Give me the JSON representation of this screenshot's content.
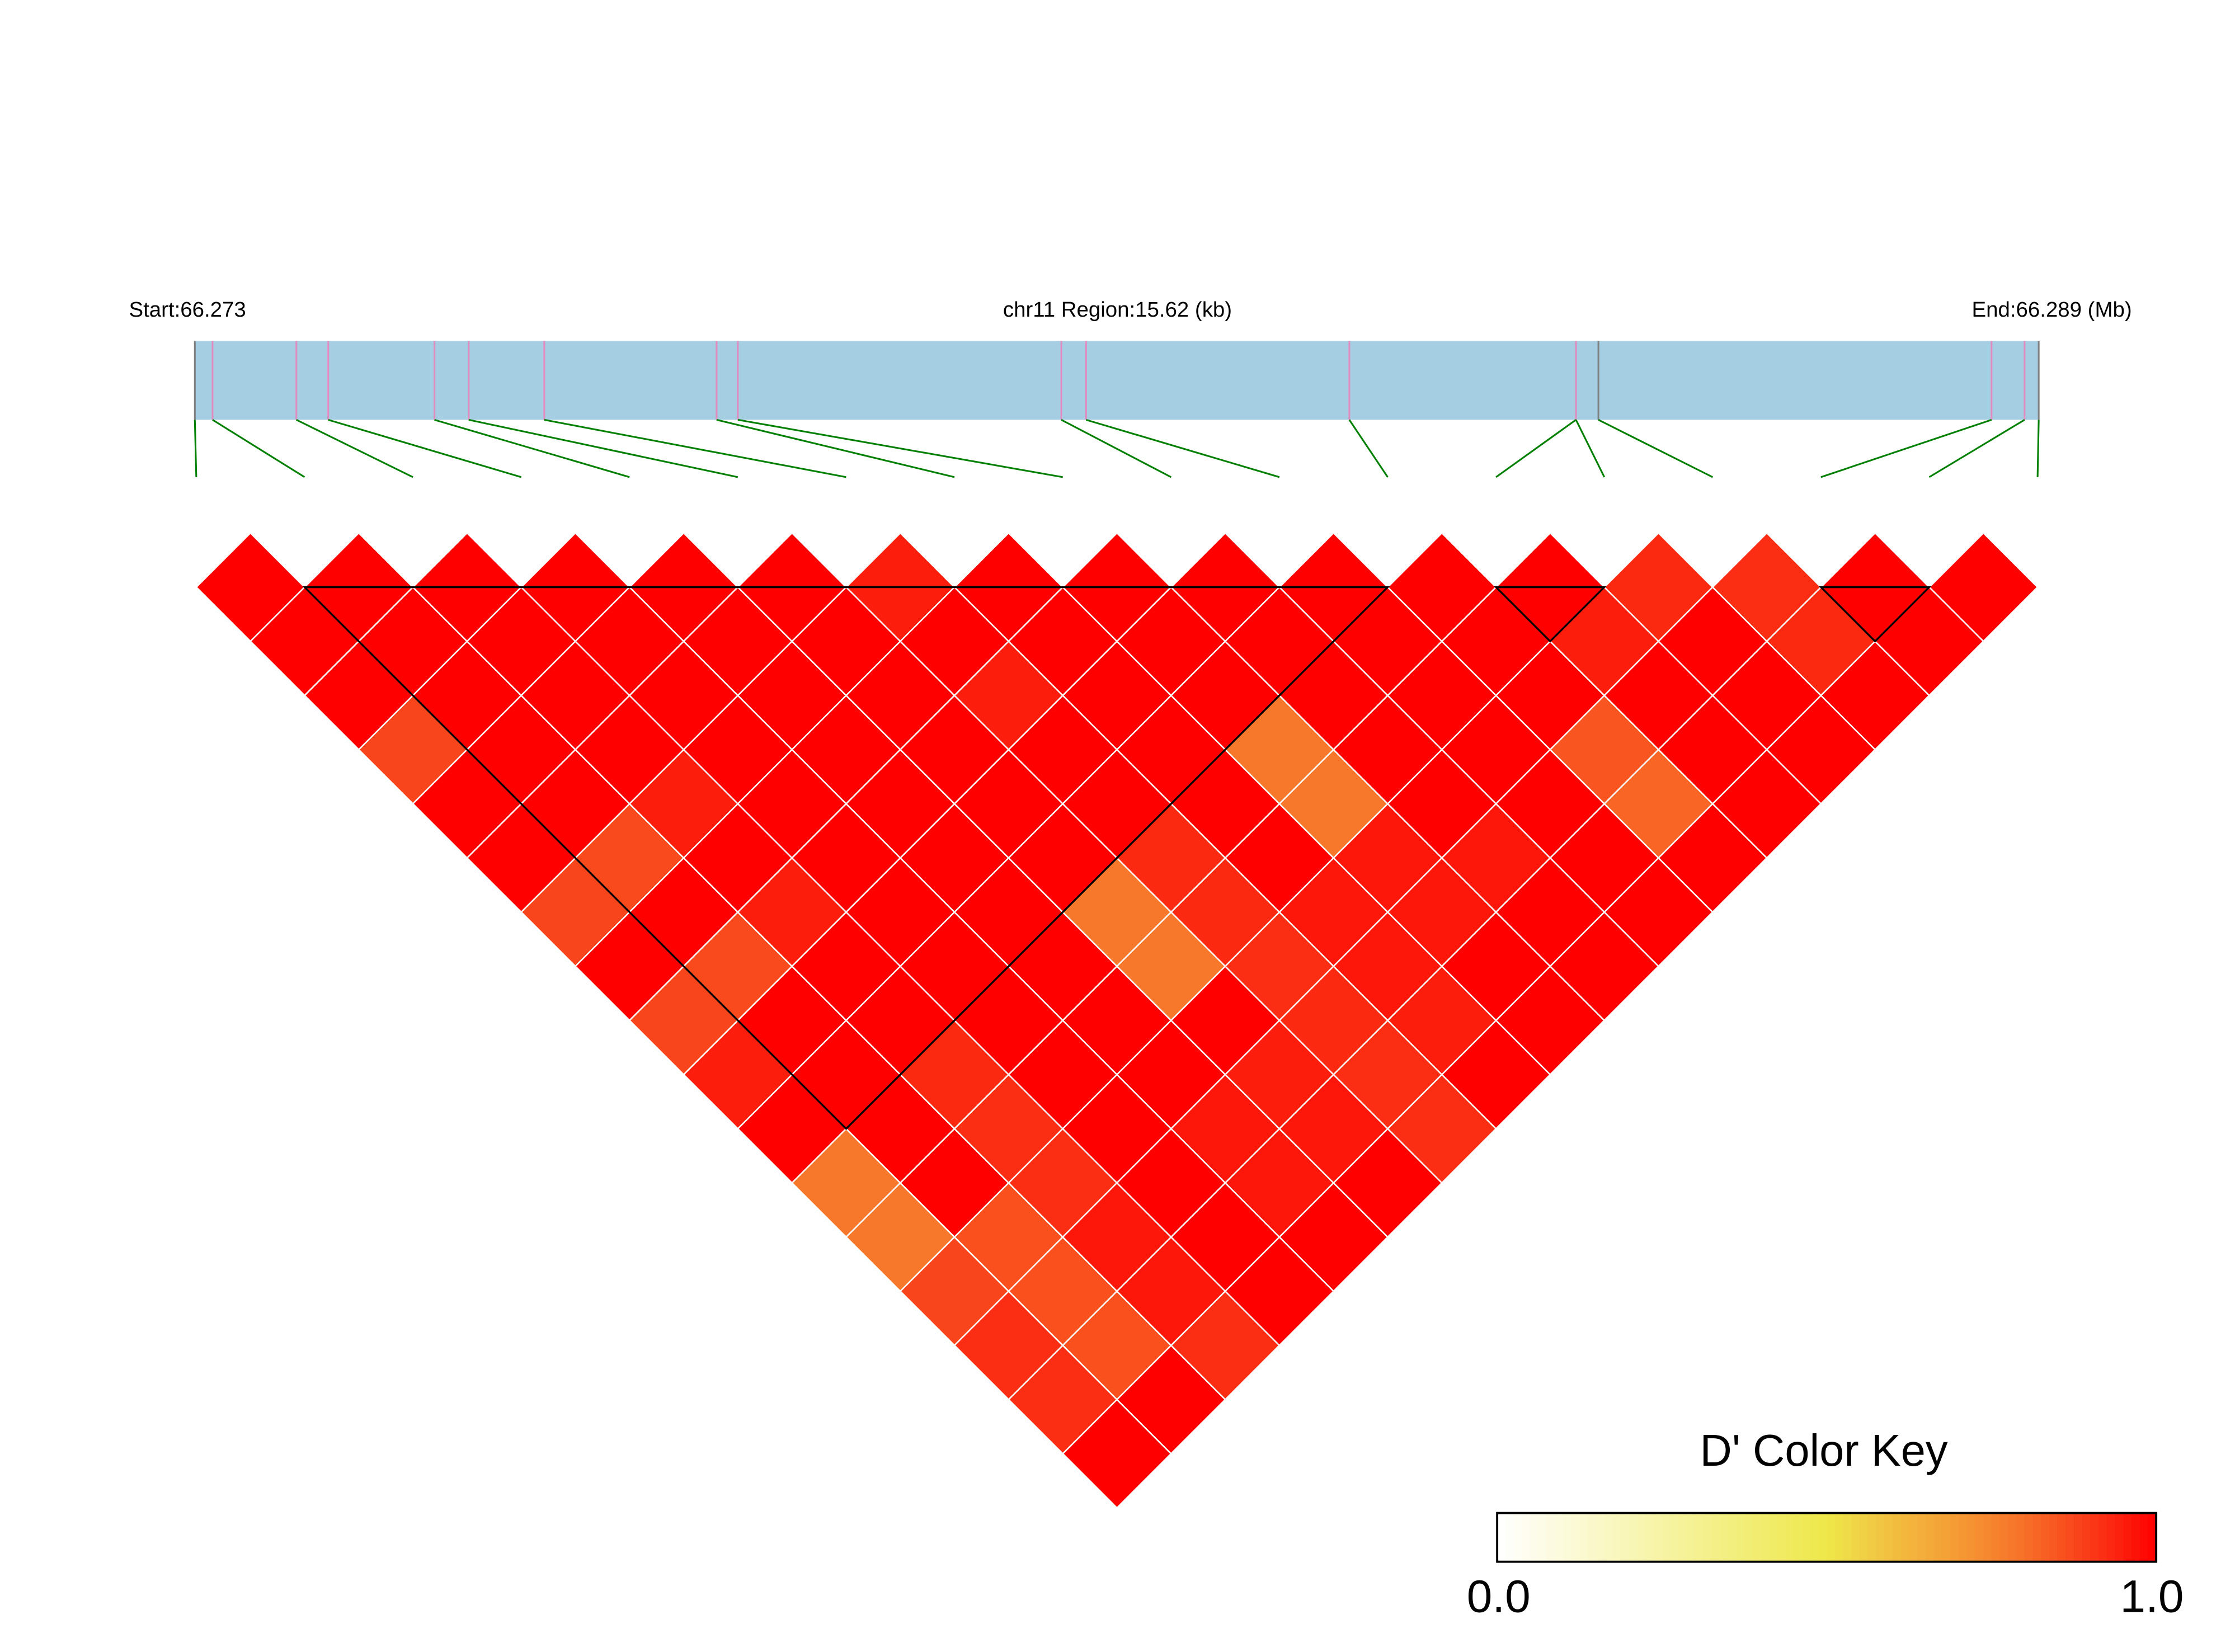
{
  "header": {
    "start_label": "Start:66.273",
    "region_label": "chr11 Region:15.62 (kb)",
    "end_label": "End:66.289 (Mb)"
  },
  "color_key": {
    "title": "D' Color Key",
    "min_label": "0.0",
    "max_label": "1.0"
  },
  "chart_data": {
    "type": "heatmap",
    "subtype": "LD heatmap (pairwise D')",
    "chromosome": "chr11",
    "start_mb": 66.273,
    "end_mb": 66.289,
    "region_kb": 15.62,
    "snp_count": 18,
    "snp_positions_mb": [
      66.273,
      66.27315,
      66.27386,
      66.27413,
      66.27503,
      66.27532,
      66.27596,
      66.27742,
      66.2776,
      66.28034,
      66.28055,
      66.28278,
      66.2847,
      66.2847,
      66.28489,
      66.28822,
      66.2885,
      66.28862
    ],
    "dprime_upper_rows": [
      [
        1,
        1,
        1,
        0.88,
        1,
        1,
        0.88,
        1,
        0.88,
        0.95,
        1,
        0.78,
        0.78,
        0.88,
        0.92,
        0.92,
        1
      ],
      [
        1,
        1,
        1,
        1,
        1,
        0.87,
        1,
        0.87,
        1,
        1,
        1,
        1,
        0.86,
        0.86,
        0.86,
        1
      ],
      [
        1,
        1,
        1,
        1,
        0.95,
        1,
        0.95,
        1,
        1,
        0.93,
        0.92,
        0.92,
        0.96,
        0.96,
        0.92
      ],
      [
        1,
        1,
        1,
        1,
        1,
        1,
        1,
        1,
        1,
        1,
        1,
        1,
        1,
        1
      ],
      [
        1,
        1,
        1,
        1,
        1,
        1,
        1,
        1,
        1,
        1,
        0.96,
        0.96,
        1
      ],
      [
        1,
        1,
        1,
        1,
        1,
        1,
        0.78,
        0.78,
        1,
        0.95,
        0.96,
        1
      ],
      [
        0.95,
        1,
        0.95,
        1,
        1,
        0.93,
        0.93,
        0.92,
        0.93,
        0.92,
        0.92
      ],
      [
        1,
        1,
        1,
        1,
        1,
        1,
        0.96,
        0.96,
        0.95,
        1
      ],
      [
        1,
        1,
        1,
        0.78,
        0.78,
        0.96,
        0.96,
        1,
        1
      ],
      [
        1,
        1,
        1,
        1,
        1,
        0.96,
        1,
        1
      ],
      [
        1,
        1,
        1,
        1,
        1,
        1,
        1
      ],
      [
        1,
        1,
        1,
        0.85,
        0.82,
        1
      ],
      [
        1,
        0.95,
        1,
        1,
        1
      ],
      [
        0.93,
        1,
        1,
        1
      ],
      [
        0.92,
        0.93,
        1
      ],
      [
        1,
        1
      ],
      [
        1
      ]
    ],
    "ld_blocks_snp_numbers": [
      [
        2,
        12
      ],
      [
        13,
        14
      ],
      [
        16,
        17
      ]
    ],
    "color_scale": {
      "min": 0.0,
      "max": 1.0,
      "low_color": "#FFFFFF",
      "mid_color": "#EEE84A",
      "high_color": "#FF0000"
    },
    "colors": {
      "gene_bar": "#A6CEE3",
      "snp_tick": "#E08CC0",
      "boundary_tick": "#808080",
      "connector": "#008000",
      "cell_border": "#FFFFFF",
      "block_outline": "#000000"
    }
  }
}
